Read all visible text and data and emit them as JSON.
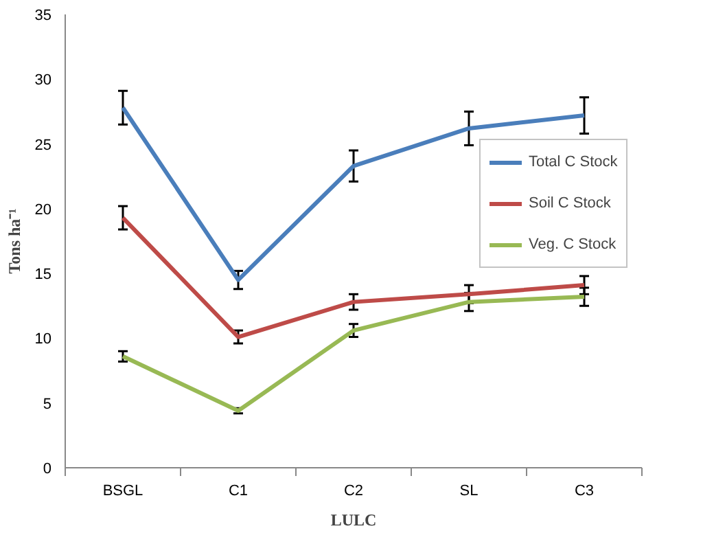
{
  "chart_data": {
    "type": "line",
    "xlabel": "LULC",
    "ylabel": "Tons ha⁻¹",
    "categories": [
      "BSGL",
      "C1",
      "C2",
      "SL",
      "C3"
    ],
    "series": [
      {
        "name": "Total C Stock",
        "color": "#4a7ebb",
        "values": [
          27.8,
          14.5,
          23.3,
          26.2,
          27.2
        ],
        "errors": [
          1.3,
          0.7,
          1.2,
          1.3,
          1.4
        ]
      },
      {
        "name": "Soil C Stock",
        "color": "#be4b48",
        "values": [
          19.3,
          10.1,
          12.8,
          13.4,
          14.1
        ],
        "errors": [
          0.9,
          0.5,
          0.6,
          0.7,
          0.7
        ]
      },
      {
        "name": "Veg. C Stock",
        "color": "#98b954",
        "values": [
          8.6,
          4.4,
          10.6,
          12.8,
          13.2
        ],
        "errors": [
          0.4,
          0.2,
          0.5,
          0.7,
          0.7
        ]
      }
    ],
    "ylim": [
      0,
      35
    ],
    "yticks": [
      0,
      5,
      10,
      15,
      20,
      25,
      30,
      35
    ],
    "grid": false,
    "legend": "right",
    "marker": "none",
    "line_style": "solid"
  }
}
